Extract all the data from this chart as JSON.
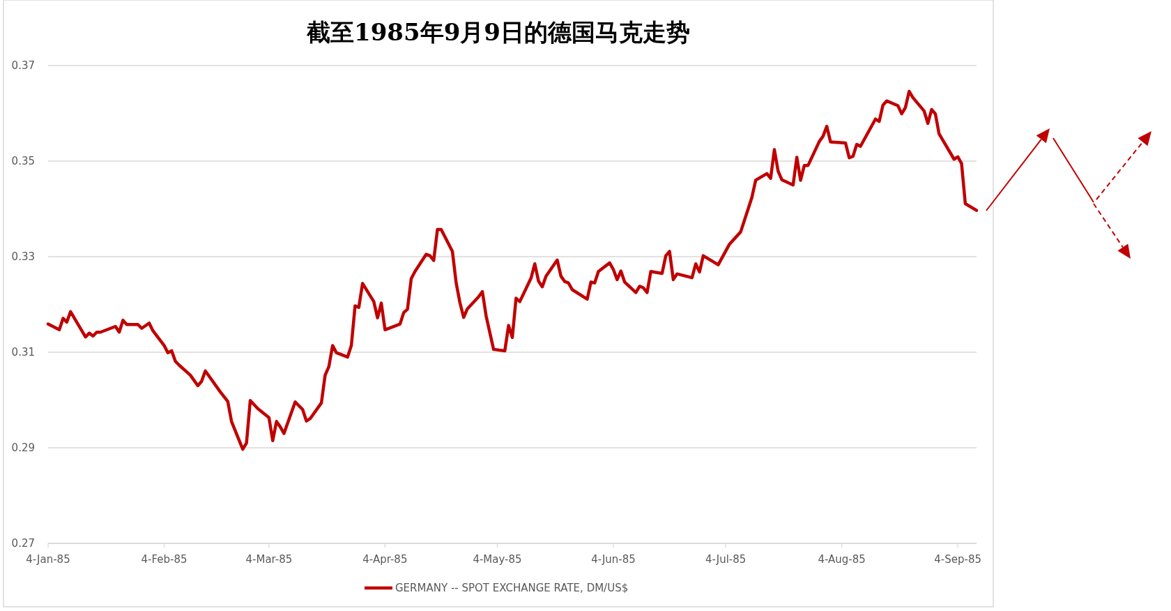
{
  "chart_data": {
    "type": "line",
    "title": "截至1985年9月9日的德国马克走势",
    "x": [
      "1985-01-04",
      "1985-01-07",
      "1985-01-08",
      "1985-01-09",
      "1985-01-10",
      "1985-01-14",
      "1985-01-15",
      "1985-01-16",
      "1985-01-17",
      "1985-01-18",
      "1985-01-22",
      "1985-01-23",
      "1985-01-24",
      "1985-01-25",
      "1985-01-28",
      "1985-01-29",
      "1985-01-31",
      "1985-02-01",
      "1985-02-04",
      "1985-02-05",
      "1985-02-06",
      "1985-02-07",
      "1985-02-08",
      "1985-02-11",
      "1985-02-13",
      "1985-02-14",
      "1985-02-15",
      "1985-02-19",
      "1985-02-21",
      "1985-02-22",
      "1985-02-25",
      "1985-02-26",
      "1985-02-27",
      "1985-03-01",
      "1985-03-04",
      "1985-03-05",
      "1985-03-06",
      "1985-03-07",
      "1985-03-08",
      "1985-03-11",
      "1985-03-12",
      "1985-03-13",
      "1985-03-14",
      "1985-03-15",
      "1985-03-18",
      "1985-03-19",
      "1985-03-20",
      "1985-03-21",
      "1985-03-22",
      "1985-03-25",
      "1985-03-26",
      "1985-03-27",
      "1985-03-28",
      "1985-03-29",
      "1985-04-01",
      "1985-04-02",
      "1985-04-03",
      "1985-04-04",
      "1985-04-08",
      "1985-04-09",
      "1985-04-10",
      "1985-04-11",
      "1985-04-12",
      "1985-04-15",
      "1985-04-16",
      "1985-04-17",
      "1985-04-18",
      "1985-04-19",
      "1985-04-22",
      "1985-04-23",
      "1985-04-24",
      "1985-04-25",
      "1985-04-26",
      "1985-04-29",
      "1985-04-30",
      "1985-05-01",
      "1985-05-03",
      "1985-05-06",
      "1985-05-07",
      "1985-05-08",
      "1985-05-09",
      "1985-05-10",
      "1985-05-13",
      "1985-05-14",
      "1985-05-15",
      "1985-05-16",
      "1985-05-17",
      "1985-05-20",
      "1985-05-21",
      "1985-05-22",
      "1985-05-23",
      "1985-05-24",
      "1985-05-28",
      "1985-05-29",
      "1985-05-30",
      "1985-05-31",
      "1985-06-03",
      "1985-06-04",
      "1985-06-05",
      "1985-06-06",
      "1985-06-07",
      "1985-06-10",
      "1985-06-11",
      "1985-06-12",
      "1985-06-13",
      "1985-06-14",
      "1985-06-17",
      "1985-06-18",
      "1985-06-19",
      "1985-06-20",
      "1985-06-21",
      "1985-06-25",
      "1985-06-26",
      "1985-06-27",
      "1985-06-28",
      "1985-07-02",
      "1985-07-05",
      "1985-07-08",
      "1985-07-11",
      "1985-07-12",
      "1985-07-15",
      "1985-07-16",
      "1985-07-17",
      "1985-07-18",
      "1985-07-19",
      "1985-07-22",
      "1985-07-23",
      "1985-07-24",
      "1985-07-25",
      "1985-07-26",
      "1985-07-29",
      "1985-07-30",
      "1985-07-31",
      "1985-08-01",
      "1985-08-05",
      "1985-08-06",
      "1985-08-07",
      "1985-08-08",
      "1985-08-09",
      "1985-08-13",
      "1985-08-14",
      "1985-08-15",
      "1985-08-16",
      "1985-08-19",
      "1985-08-20",
      "1985-08-21",
      "1985-08-22",
      "1985-08-23",
      "1985-08-26",
      "1985-08-27",
      "1985-08-28",
      "1985-08-29",
      "1985-08-30",
      "1985-09-03",
      "1985-09-04",
      "1985-09-05",
      "1985-09-06",
      "1985-09-09"
    ],
    "series": [
      {
        "name": "GERMANY -- SPOT EXCHANGE RATE, DM/US$",
        "color": "#c00000",
        "values": [
          0.3159,
          0.3147,
          0.3171,
          0.3163,
          0.3185,
          0.3132,
          0.314,
          0.3134,
          0.3142,
          0.3142,
          0.3154,
          0.3142,
          0.3167,
          0.3158,
          0.3158,
          0.315,
          0.3161,
          0.3145,
          0.3114,
          0.3099,
          0.3103,
          0.3081,
          0.3073,
          0.3052,
          0.303,
          0.3039,
          0.3061,
          0.3017,
          0.2997,
          0.2955,
          0.2897,
          0.291,
          0.2999,
          0.2982,
          0.2963,
          0.2915,
          0.2955,
          0.2944,
          0.293,
          0.2996,
          0.2988,
          0.298,
          0.2956,
          0.2961,
          0.2994,
          0.3052,
          0.307,
          0.3114,
          0.3099,
          0.309,
          0.3114,
          0.3197,
          0.3194,
          0.3244,
          0.3206,
          0.3172,
          0.3203,
          0.3147,
          0.3159,
          0.3183,
          0.319,
          0.3254,
          0.3269,
          0.3305,
          0.3302,
          0.3292,
          0.3357,
          0.3357,
          0.3311,
          0.3245,
          0.3204,
          0.3173,
          0.3191,
          0.3216,
          0.3227,
          0.3176,
          0.3106,
          0.3103,
          0.3156,
          0.3131,
          0.3213,
          0.3206,
          0.3255,
          0.3285,
          0.3249,
          0.3237,
          0.3259,
          0.3293,
          0.3259,
          0.3248,
          0.3245,
          0.3231,
          0.3211,
          0.3247,
          0.3245,
          0.3269,
          0.3287,
          0.3273,
          0.3252,
          0.327,
          0.3247,
          0.3225,
          0.3238,
          0.3235,
          0.3225,
          0.3269,
          0.3265,
          0.3302,
          0.3311,
          0.3252,
          0.3264,
          0.3256,
          0.3285,
          0.3268,
          0.3302,
          0.3283,
          0.3326,
          0.3352,
          0.3424,
          0.346,
          0.3474,
          0.3464,
          0.3524,
          0.3479,
          0.3461,
          0.345,
          0.3508,
          0.346,
          0.3491,
          0.3491,
          0.3541,
          0.3552,
          0.3573,
          0.354,
          0.3538,
          0.3507,
          0.351,
          0.3535,
          0.3531,
          0.3588,
          0.3583,
          0.3617,
          0.3626,
          0.3616,
          0.3599,
          0.3612,
          0.3646,
          0.3633,
          0.3605,
          0.3579,
          0.3608,
          0.3599,
          0.3557,
          0.3504,
          0.3509,
          0.3495,
          0.3411,
          0.3397
        ]
      }
    ],
    "xlim": [
      "1985-01-04",
      "1985-09-09"
    ],
    "xticks": [
      {
        "value": "1985-01-04",
        "label": "4-Jan-85"
      },
      {
        "value": "1985-02-04",
        "label": "4-Feb-85"
      },
      {
        "value": "1985-03-04",
        "label": "4-Mar-85"
      },
      {
        "value": "1985-04-04",
        "label": "4-Apr-85"
      },
      {
        "value": "1985-05-04",
        "label": "4-May-85"
      },
      {
        "value": "1985-06-04",
        "label": "4-Jun-85"
      },
      {
        "value": "1985-07-04",
        "label": "4-Jul-85"
      },
      {
        "value": "1985-08-04",
        "label": "4-Aug-85"
      },
      {
        "value": "1985-09-04",
        "label": "4-Sep-85"
      }
    ],
    "ylim": [
      0.27,
      0.37
    ],
    "yticks": [
      0.27,
      0.29,
      0.31,
      0.33,
      0.35,
      0.37
    ],
    "grid": "y",
    "legend": "bottom",
    "marker": "none",
    "line_style": "solid"
  }
}
